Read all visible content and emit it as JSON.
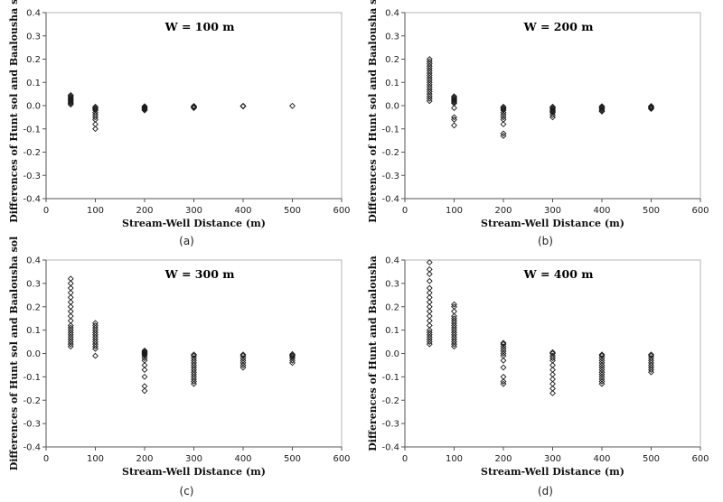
{
  "chart_data": [
    {
      "type": "scatter",
      "title": "W = 100 m",
      "panel_label": "(a)",
      "xlabel": "Stream-Well Distance (m)",
      "ylabel": "Differences of Hunt sol and Baalousha sol",
      "xlim": [
        0,
        600
      ],
      "ylim": [
        -0.4,
        0.4
      ],
      "xticks": [
        "0",
        "100",
        "200",
        "300",
        "400",
        "500",
        "600"
      ],
      "yticks": [
        "0.4",
        "0.3",
        "0.2",
        "0.1",
        "0.0",
        "-0.1",
        "-0.2",
        "-0.3",
        "-0.4"
      ],
      "marker": "hollow-diamond",
      "series": [
        {
          "points": [
            {
              "x": 50,
              "ys": [
                0.045,
                0.04,
                0.035,
                0.03,
                0.025,
                0.02,
                0.015,
                0.01,
                0.005
              ]
            },
            {
              "x": 100,
              "ys": [
                -0.005,
                -0.01,
                -0.015,
                -0.02,
                -0.03,
                -0.04,
                -0.05,
                -0.06,
                -0.08,
                -0.1
              ]
            },
            {
              "x": 200,
              "ys": [
                -0.003,
                -0.006,
                -0.01,
                -0.013,
                -0.016,
                -0.02
              ]
            },
            {
              "x": 300,
              "ys": [
                -0.002,
                -0.004,
                -0.006,
                -0.008,
                -0.01
              ]
            },
            {
              "x": 400,
              "ys": [
                -0.001,
                -0.003
              ]
            },
            {
              "x": 500,
              "ys": [
                -0.001
              ]
            }
          ]
        }
      ]
    },
    {
      "type": "scatter",
      "title": "W = 200 m",
      "panel_label": "(b)",
      "xlabel": "Stream-Well Distance (m)",
      "ylabel": "Differences of Hunt sol and Baalousha sol",
      "xlim": [
        0,
        600
      ],
      "ylim": [
        -0.4,
        0.4
      ],
      "xticks": [
        "0",
        "100",
        "200",
        "300",
        "400",
        "500",
        "600"
      ],
      "yticks": [
        "0.4",
        "0.3",
        "0.2",
        "0.1",
        "0.0",
        "-0.1",
        "-0.2",
        "-0.3",
        "-0.4"
      ],
      "marker": "hollow-diamond",
      "series": [
        {
          "points": [
            {
              "x": 50,
              "ys": [
                0.2,
                0.19,
                0.18,
                0.17,
                0.16,
                0.15,
                0.14,
                0.13,
                0.12,
                0.11,
                0.1,
                0.09,
                0.08,
                0.07,
                0.06,
                0.05,
                0.04,
                0.03,
                0.02
              ]
            },
            {
              "x": 100,
              "ys": [
                0.04,
                0.035,
                0.03,
                0.025,
                0.02,
                0.015,
                0.01,
                -0.01,
                -0.05,
                -0.06,
                -0.085
              ]
            },
            {
              "x": 200,
              "ys": [
                -0.005,
                -0.01,
                -0.015,
                -0.02,
                -0.03,
                -0.04,
                -0.05,
                -0.06,
                -0.08,
                -0.12,
                -0.13
              ]
            },
            {
              "x": 300,
              "ys": [
                -0.005,
                -0.01,
                -0.015,
                -0.02,
                -0.025,
                -0.03,
                -0.04,
                -0.05
              ]
            },
            {
              "x": 400,
              "ys": [
                -0.003,
                -0.006,
                -0.01,
                -0.015,
                -0.02,
                -0.025
              ]
            },
            {
              "x": 500,
              "ys": [
                -0.002,
                -0.005,
                -0.008,
                -0.011,
                -0.014
              ]
            }
          ]
        }
      ]
    },
    {
      "type": "scatter",
      "title": "W = 300 m",
      "panel_label": "(c)",
      "xlabel": "Stream-Well Distance (m)",
      "ylabel": "Differences of Hunt sol and Baalousha sol",
      "xlim": [
        0,
        600
      ],
      "ylim": [
        -0.4,
        0.4
      ],
      "xticks": [
        "0",
        "100",
        "200",
        "300",
        "400",
        "500",
        "600"
      ],
      "yticks": [
        "0.4",
        "0.3",
        "0.2",
        "0.1",
        "0.0",
        "-0.1",
        "-0.2",
        "-0.3",
        "-0.4"
      ],
      "marker": "hollow-diamond",
      "series": [
        {
          "points": [
            {
              "x": 50,
              "ys": [
                0.32,
                0.3,
                0.28,
                0.26,
                0.24,
                0.22,
                0.2,
                0.18,
                0.16,
                0.14,
                0.12,
                0.11,
                0.1,
                0.09,
                0.08,
                0.07,
                0.06,
                0.05,
                0.04,
                0.03
              ]
            },
            {
              "x": 100,
              "ys": [
                0.13,
                0.12,
                0.11,
                0.1,
                0.09,
                0.08,
                0.07,
                0.06,
                0.05,
                0.04,
                0.03,
                0.02,
                -0.01
              ]
            },
            {
              "x": 200,
              "ys": [
                0.012,
                0.008,
                0.004,
                0.0,
                -0.005,
                -0.01,
                -0.02,
                -0.03,
                -0.05,
                -0.07,
                -0.1,
                -0.14,
                -0.16
              ]
            },
            {
              "x": 300,
              "ys": [
                -0.005,
                -0.01,
                -0.02,
                -0.03,
                -0.04,
                -0.05,
                -0.06,
                -0.07,
                -0.08,
                -0.09,
                -0.1,
                -0.11,
                -0.12,
                -0.13
              ]
            },
            {
              "x": 400,
              "ys": [
                -0.005,
                -0.01,
                -0.02,
                -0.03,
                -0.04,
                -0.05,
                -0.06
              ]
            },
            {
              "x": 500,
              "ys": [
                -0.003,
                -0.008,
                -0.013,
                -0.02,
                -0.03,
                -0.04
              ]
            }
          ]
        }
      ]
    },
    {
      "type": "scatter",
      "title": "W = 400 m",
      "panel_label": "(d)",
      "xlabel": "Stream-Well Distance (m)",
      "ylabel": "Differences of Hunt and Baalousha",
      "xlim": [
        0,
        600
      ],
      "ylim": [
        -0.4,
        0.4
      ],
      "xticks": [
        "0",
        "100",
        "200",
        "300",
        "400",
        "500",
        "600"
      ],
      "yticks": [
        "0.4",
        "0.3",
        "0.2",
        "0.1",
        "0.0",
        "-0.1",
        "-0.2",
        "-0.3",
        "-0.4"
      ],
      "marker": "hollow-diamond",
      "series": [
        {
          "points": [
            {
              "x": 50,
              "ys": [
                0.39,
                0.36,
                0.34,
                0.31,
                0.28,
                0.26,
                0.24,
                0.22,
                0.2,
                0.18,
                0.16,
                0.14,
                0.12,
                0.1,
                0.09,
                0.08,
                0.07,
                0.06,
                0.05,
                0.04
              ]
            },
            {
              "x": 100,
              "ys": [
                0.21,
                0.2,
                0.18,
                0.16,
                0.15,
                0.14,
                0.13,
                0.12,
                0.11,
                0.1,
                0.09,
                0.08,
                0.07,
                0.06,
                0.05,
                0.04,
                0.03
              ]
            },
            {
              "x": 200,
              "ys": [
                0.045,
                0.04,
                0.03,
                0.02,
                0.01,
                0.0,
                -0.01,
                -0.03,
                -0.06,
                -0.1,
                -0.12,
                -0.13
              ]
            },
            {
              "x": 300,
              "ys": [
                0.005,
                0.0,
                -0.01,
                -0.02,
                -0.03,
                -0.05,
                -0.07,
                -0.09,
                -0.11,
                -0.13,
                -0.15,
                -0.17
              ]
            },
            {
              "x": 400,
              "ys": [
                -0.005,
                -0.01,
                -0.02,
                -0.03,
                -0.04,
                -0.05,
                -0.06,
                -0.07,
                -0.08,
                -0.09,
                -0.1,
                -0.11,
                -0.12,
                -0.13
              ]
            },
            {
              "x": 500,
              "ys": [
                -0.005,
                -0.01,
                -0.02,
                -0.03,
                -0.04,
                -0.05,
                -0.06,
                -0.07,
                -0.08
              ]
            }
          ]
        }
      ]
    }
  ]
}
